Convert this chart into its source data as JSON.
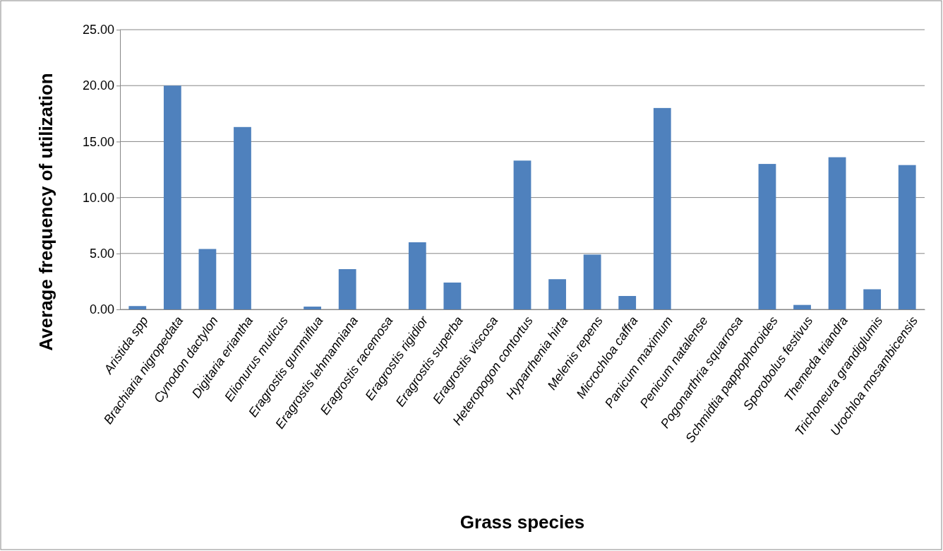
{
  "chart_data": {
    "type": "bar",
    "xlabel": "Grass species",
    "ylabel": "Average frequency of utilization",
    "categories": [
      "Aristida spp",
      "Brachiaria nigropedata",
      "Cynodon dactylon",
      "Digitaria eriantha",
      "Elionurus muticus",
      "Eragrostis gummiflua",
      "Eragrostis lehmanniana",
      "Eragrostis racemosa",
      "Eragrostis rigidior",
      "Eragrostis superba",
      "Eragrostis viscosa",
      "Heteropogon contortus",
      "Hyparrhenia hirta",
      "Melenis repens",
      "Microchloa caffra",
      "Panicum maximum",
      "Penicum natalense",
      "Pogonarthria squarrosa",
      "Schmidtia pappophoroides",
      "Sporobolus festivus",
      "Themeda triandra",
      "Trichoneura grandiglumis",
      "Urochloa mosambicensis"
    ],
    "values": [
      0.3,
      20.0,
      5.4,
      16.3,
      0,
      0.25,
      3.6,
      0,
      6.0,
      2.4,
      0,
      13.3,
      2.7,
      4.9,
      1.2,
      18.0,
      0,
      0,
      13.0,
      0.4,
      13.6,
      1.8,
      12.9
    ],
    "color": "#4f81bd",
    "ylim": [
      0,
      25
    ],
    "yticks": [
      {
        "value": 0,
        "label": "0.00"
      },
      {
        "value": 5,
        "label": "5.00"
      },
      {
        "value": 10,
        "label": "10.00"
      },
      {
        "value": 15,
        "label": "15.00"
      },
      {
        "value": 20,
        "label": "20.00"
      },
      {
        "value": 25,
        "label": "25.00"
      }
    ],
    "grid": "y"
  }
}
